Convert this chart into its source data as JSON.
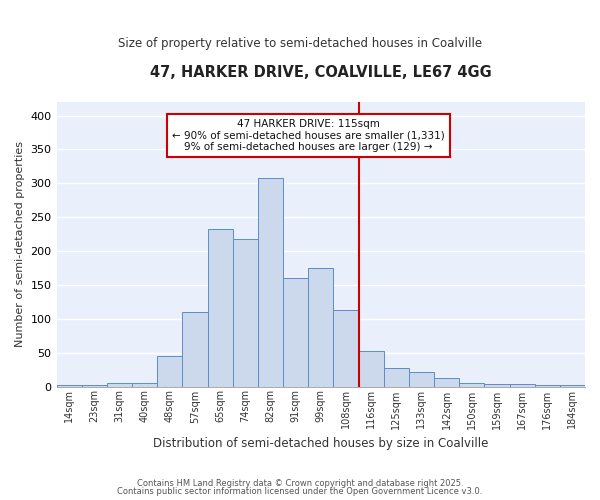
{
  "title1": "47, HARKER DRIVE, COALVILLE, LE67 4GG",
  "title2": "Size of property relative to semi-detached houses in Coalville",
  "xlabel": "Distribution of semi-detached houses by size in Coalville",
  "ylabel": "Number of semi-detached properties",
  "bar_labels": [
    "14sqm",
    "23sqm",
    "31sqm",
    "40sqm",
    "48sqm",
    "57sqm",
    "65sqm",
    "74sqm",
    "82sqm",
    "91sqm",
    "99sqm",
    "108sqm",
    "116sqm",
    "125sqm",
    "133sqm",
    "142sqm",
    "150sqm",
    "159sqm",
    "167sqm",
    "176sqm",
    "184sqm"
  ],
  "bar_values": [
    2,
    2,
    5,
    5,
    45,
    110,
    233,
    218,
    308,
    160,
    175,
    113,
    52,
    28,
    22,
    12,
    5,
    4,
    3,
    2,
    2
  ],
  "bar_color": "#ccd9ed",
  "bar_edge_color": "#5b8dc8",
  "vline_color": "#cc0000",
  "annotation_text": "47 HARKER DRIVE: 115sqm\n← 90% of semi-detached houses are smaller (1,331)\n9% of semi-detached houses are larger (129) →",
  "annotation_box_color": "#ffffff",
  "annotation_box_edge_color": "#cc0000",
  "ylim": [
    0,
    420
  ],
  "yticks": [
    0,
    50,
    100,
    150,
    200,
    250,
    300,
    350,
    400
  ],
  "background_color": "#eaf0fb",
  "grid_color": "#ffffff",
  "footer1": "Contains HM Land Registry data © Crown copyright and database right 2025.",
  "footer2": "Contains public sector information licensed under the Open Government Licence v3.0."
}
